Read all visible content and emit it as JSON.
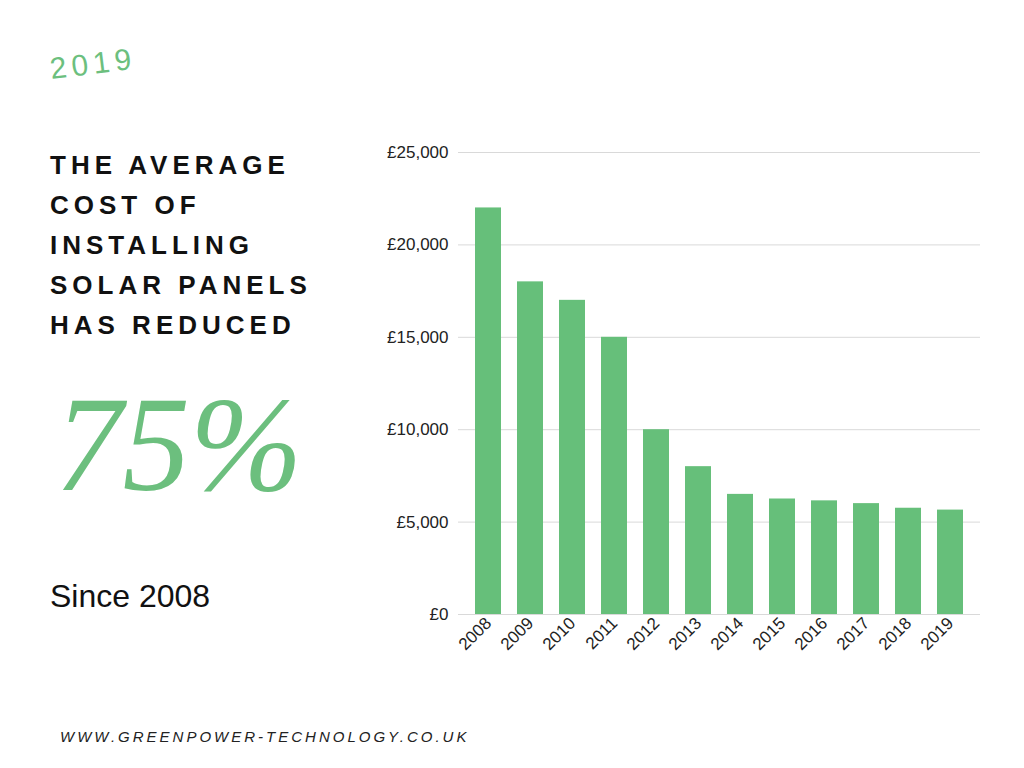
{
  "chart_data": {
    "type": "bar",
    "title": "THE AVERAGE\nCOST OF\nINSTALLING\nSOLAR PANELS\nHAS REDUCED",
    "annotations": [
      "2019",
      "75%",
      "Since 2008",
      "WWW.GREENPOWER-TECHNOLOGY.CO.UK"
    ],
    "categories": [
      "2008",
      "2009",
      "2010",
      "2011",
      "2012",
      "2013",
      "2014",
      "2015",
      "2016",
      "2017",
      "2018",
      "2019"
    ],
    "values": [
      22000,
      18000,
      17000,
      15000,
      10000,
      8000,
      6500,
      6250,
      6150,
      6000,
      5750,
      5650
    ],
    "color": "#66bf7a",
    "ylim": [
      0,
      25000
    ],
    "yticks": [
      {
        "value": 0,
        "label": "£0"
      },
      {
        "value": 5000,
        "label": "£5,000"
      },
      {
        "value": 10000,
        "label": "£10,000"
      },
      {
        "value": 15000,
        "label": "£15,000"
      },
      {
        "value": 20000,
        "label": "£20,000"
      },
      {
        "value": 25000,
        "label": "£25,000"
      }
    ],
    "grid": true
  }
}
